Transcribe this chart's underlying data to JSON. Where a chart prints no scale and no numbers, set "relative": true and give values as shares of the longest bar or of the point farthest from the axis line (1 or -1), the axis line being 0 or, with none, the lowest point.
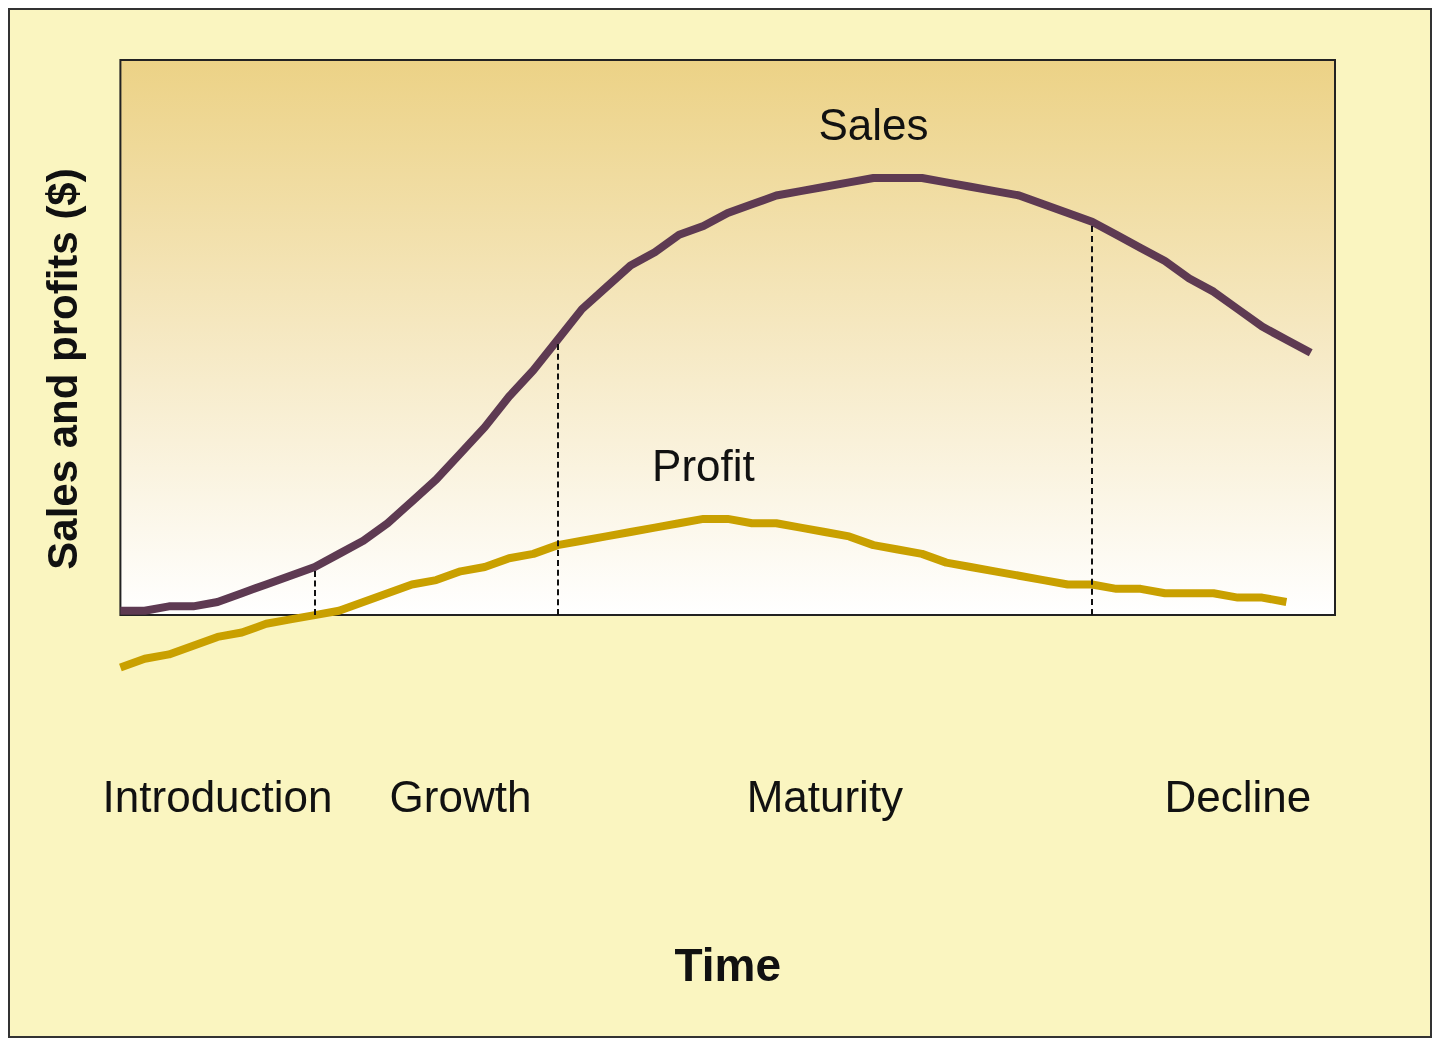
{
  "chart_data": {
    "type": "line",
    "relative": true,
    "xlabel": "Time",
    "ylabel": "Sales and profits ($)",
    "tick_labels": "x",
    "grid": false,
    "legend": false,
    "marker": "none",
    "line_style": "solid",
    "categories": [
      null,
      null,
      null,
      null,
      "Introduction",
      null,
      null,
      null,
      null,
      null,
      null,
      null,
      null,
      null,
      "Growth",
      null,
      null,
      null,
      null,
      null,
      null,
      null,
      null,
      null,
      null,
      null,
      null,
      null,
      null,
      "Maturity",
      null,
      null,
      null,
      null,
      null,
      null,
      null,
      null,
      null,
      null,
      null,
      null,
      null,
      null,
      null,
      null,
      "Decline",
      null,
      null,
      null,
      null
    ],
    "series": [
      {
        "name": "Sales",
        "color": "#5e3a52",
        "values": [
          0.01,
          0.01,
          0.02,
          0.02,
          0.03,
          0.05,
          0.07,
          0.09,
          0.11,
          0.14,
          0.17,
          0.21,
          0.26,
          0.31,
          0.37,
          0.43,
          0.5,
          0.56,
          0.63,
          0.7,
          0.75,
          0.8,
          0.83,
          0.87,
          0.89,
          0.92,
          0.94,
          0.96,
          0.97,
          0.98,
          0.99,
          1.0,
          1.0,
          1.0,
          0.99,
          0.98,
          0.97,
          0.96,
          0.94,
          0.92,
          0.9,
          0.87,
          0.84,
          0.81,
          0.77,
          0.74,
          0.7,
          0.66,
          0.63,
          0.6,
          null
        ]
      },
      {
        "name": "Profit",
        "color": "#c9a000",
        "values": [
          -0.12,
          -0.1,
          -0.09,
          -0.07,
          -0.05,
          -0.04,
          -0.02,
          -0.01,
          0.0,
          0.01,
          0.03,
          0.05,
          0.07,
          0.08,
          0.1,
          0.11,
          0.13,
          0.14,
          0.16,
          0.17,
          0.18,
          0.19,
          0.2,
          0.21,
          0.22,
          0.22,
          0.21,
          0.21,
          0.2,
          0.19,
          0.18,
          0.16,
          0.15,
          0.14,
          0.12,
          0.11,
          0.1,
          0.09,
          0.08,
          0.07,
          0.07,
          0.06,
          0.06,
          0.05,
          0.05,
          0.05,
          0.04,
          0.04,
          0.03,
          null,
          null
        ]
      }
    ]
  }
}
